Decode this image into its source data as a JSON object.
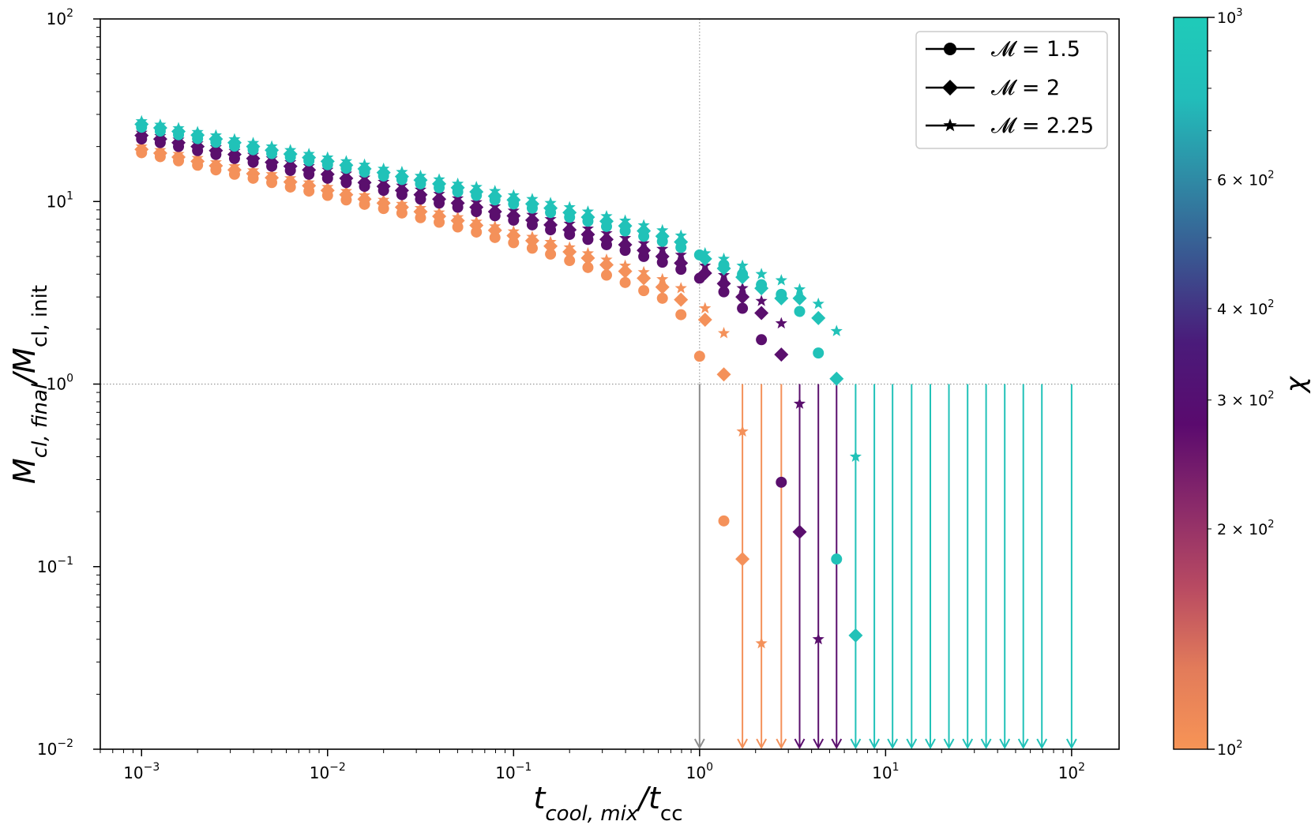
{
  "chart_data": {
    "type": "scatter",
    "xscale": "log",
    "yscale": "log",
    "xlim": [
      0.0006,
      180
    ],
    "ylim": [
      0.01,
      100
    ],
    "x_ticks": [
      0.001,
      0.01,
      0.1,
      1,
      10,
      100
    ],
    "x_tick_labels": [
      {
        "base": "10",
        "exp": "−3"
      },
      {
        "base": "10",
        "exp": "−2"
      },
      {
        "base": "10",
        "exp": "−1"
      },
      {
        "base": "10",
        "exp": "0"
      },
      {
        "base": "10",
        "exp": "1"
      },
      {
        "base": "10",
        "exp": "2"
      }
    ],
    "y_ticks": [
      0.01,
      0.1,
      1,
      10,
      100
    ],
    "y_tick_labels": [
      {
        "base": "10",
        "exp": "−2"
      },
      {
        "base": "10",
        "exp": "−1"
      },
      {
        "base": "10",
        "exp": "0"
      },
      {
        "base": "10",
        "exp": "1"
      },
      {
        "base": "10",
        "exp": "2"
      }
    ],
    "xlabel": {
      "main": "t",
      "sub": "cool, mix",
      "mid": "/t",
      "sub2": "cc"
    },
    "ylabel": {
      "main": "M",
      "sub": "cl, final",
      "mid": "/M",
      "sub2": "cl, init"
    },
    "reference_lines": {
      "x": 1,
      "y": 1
    },
    "legend": {
      "placement": "top-right",
      "entries": [
        {
          "marker": "circle",
          "label": "𝓜 = 1.5"
        },
        {
          "marker": "diamond",
          "label": "𝓜 = 2"
        },
        {
          "marker": "star",
          "label": "𝓜 = 2.25"
        }
      ]
    },
    "colorbar": {
      "label": "χ",
      "scale": "log",
      "range": [
        100,
        1000
      ],
      "gradient": [
        "#f79456",
        "#e27b5a",
        "#b84a62",
        "#8a2a6a",
        "#5a0a6e",
        "#4a1b7a",
        "#3a5490",
        "#2f8aa5",
        "#22bdba",
        "#1fcbb9"
      ],
      "tick_values": [
        100,
        200,
        300,
        400,
        600,
        1000
      ],
      "tick_labels": [
        {
          "coef": "",
          "exp": "2"
        },
        {
          "coef": "2 × ",
          "exp": "2"
        },
        {
          "coef": "3 × ",
          "exp": "2"
        },
        {
          "coef": "4 × ",
          "exp": "2"
        },
        {
          "coef": "6 × ",
          "exp": "2"
        },
        {
          "coef": "",
          "exp": "3"
        }
      ]
    },
    "series_colors": {
      "chi_100": "#f4915a",
      "chi_300": "#5a0f6d",
      "chi_1000": "#21c2b8",
      "gray": "#8c8c8c"
    },
    "series": [
      {
        "chi": 100,
        "marker": "circle",
        "color_key": "chi_100",
        "x": [
          0.001,
          0.00126,
          0.00158,
          0.002,
          0.00251,
          0.00316,
          0.00398,
          0.00501,
          0.00631,
          0.00794,
          0.01,
          0.0126,
          0.0158,
          0.02,
          0.0251,
          0.0316,
          0.0398,
          0.0501,
          0.0631,
          0.0794,
          0.1,
          0.126,
          0.158,
          0.2,
          0.251,
          0.316,
          0.398,
          0.501,
          0.631,
          0.794,
          1.0,
          1.35
        ],
        "y": [
          18.5,
          17.6,
          16.7,
          15.8,
          14.9,
          14.1,
          13.4,
          12.7,
          12.0,
          11.4,
          10.8,
          10.2,
          9.65,
          9.15,
          8.65,
          8.15,
          7.7,
          7.25,
          6.8,
          6.35,
          5.95,
          5.55,
          5.15,
          4.75,
          4.35,
          3.95,
          3.6,
          3.25,
          2.95,
          2.4,
          1.42,
          0.178
        ]
      },
      {
        "chi": 100,
        "marker": "diamond",
        "color_key": "chi_100",
        "x": [
          0.001,
          0.00126,
          0.00158,
          0.002,
          0.00251,
          0.00316,
          0.00398,
          0.00501,
          0.00631,
          0.00794,
          0.01,
          0.0126,
          0.0158,
          0.02,
          0.0251,
          0.0316,
          0.0398,
          0.0501,
          0.0631,
          0.0794,
          0.1,
          0.126,
          0.158,
          0.2,
          0.251,
          0.316,
          0.398,
          0.501,
          0.631,
          0.794,
          1.07,
          1.35,
          1.7
        ],
        "y": [
          19.3,
          18.4,
          17.5,
          16.6,
          15.7,
          14.9,
          14.2,
          13.5,
          12.8,
          12.2,
          11.5,
          10.9,
          10.3,
          9.8,
          9.3,
          8.8,
          8.3,
          7.85,
          7.4,
          6.95,
          6.5,
          6.1,
          5.7,
          5.3,
          4.9,
          4.5,
          4.15,
          3.8,
          3.4,
          2.9,
          2.25,
          1.13,
          0.11
        ]
      },
      {
        "chi": 100,
        "marker": "star",
        "color_key": "chi_100",
        "x": [
          0.001,
          0.00126,
          0.00158,
          0.002,
          0.00251,
          0.00316,
          0.00398,
          0.00501,
          0.00631,
          0.00794,
          0.01,
          0.0126,
          0.0158,
          0.02,
          0.0251,
          0.0316,
          0.0398,
          0.0501,
          0.0631,
          0.0794,
          0.1,
          0.126,
          0.158,
          0.2,
          0.251,
          0.316,
          0.398,
          0.501,
          0.631,
          0.794,
          1.07,
          1.35,
          1.7,
          2.15
        ],
        "y": [
          20.0,
          19.1,
          18.2,
          17.3,
          16.4,
          15.6,
          14.8,
          14.1,
          13.4,
          12.7,
          12.0,
          11.4,
          10.8,
          10.2,
          9.7,
          9.2,
          8.7,
          8.2,
          7.75,
          7.3,
          6.85,
          6.4,
          6.0,
          5.6,
          5.2,
          4.8,
          4.45,
          4.1,
          3.75,
          3.35,
          2.6,
          1.9,
          0.55,
          0.038
        ]
      },
      {
        "chi": 300,
        "marker": "circle",
        "color_key": "chi_300",
        "x": [
          0.001,
          0.00126,
          0.00158,
          0.002,
          0.00251,
          0.00316,
          0.00398,
          0.00501,
          0.00631,
          0.00794,
          0.01,
          0.0126,
          0.0158,
          0.02,
          0.0251,
          0.0316,
          0.0398,
          0.0501,
          0.0631,
          0.0794,
          0.1,
          0.126,
          0.158,
          0.2,
          0.251,
          0.316,
          0.398,
          0.501,
          0.631,
          0.794,
          1.0,
          1.35,
          1.7,
          2.15,
          2.75
        ],
        "y": [
          22.0,
          21.0,
          20.0,
          19.0,
          18.1,
          17.2,
          16.4,
          15.6,
          14.8,
          14.1,
          13.4,
          12.7,
          12.1,
          11.5,
          10.9,
          10.3,
          9.8,
          9.3,
          8.8,
          8.35,
          7.9,
          7.45,
          7.0,
          6.6,
          6.2,
          5.8,
          5.4,
          5.0,
          4.65,
          4.25,
          3.8,
          3.2,
          2.6,
          1.75,
          0.29
        ]
      },
      {
        "chi": 300,
        "marker": "diamond",
        "color_key": "chi_300",
        "x": [
          0.001,
          0.00126,
          0.00158,
          0.002,
          0.00251,
          0.00316,
          0.00398,
          0.00501,
          0.00631,
          0.00794,
          0.01,
          0.0126,
          0.0158,
          0.02,
          0.0251,
          0.0316,
          0.0398,
          0.0501,
          0.0631,
          0.0794,
          0.1,
          0.126,
          0.158,
          0.2,
          0.251,
          0.316,
          0.398,
          0.501,
          0.631,
          0.794,
          1.07,
          1.35,
          1.7,
          2.15,
          2.75,
          3.45
        ],
        "y": [
          23.0,
          22.0,
          21.0,
          20.0,
          19.0,
          18.1,
          17.2,
          16.4,
          15.6,
          14.9,
          14.1,
          13.4,
          12.7,
          12.1,
          11.5,
          10.9,
          10.3,
          9.8,
          9.3,
          8.8,
          8.35,
          7.9,
          7.45,
          7.0,
          6.6,
          6.2,
          5.8,
          5.4,
          5.0,
          4.6,
          4.05,
          3.55,
          3.0,
          2.45,
          1.45,
          0.155
        ]
      },
      {
        "chi": 300,
        "marker": "star",
        "color_key": "chi_300",
        "x": [
          0.001,
          0.00126,
          0.00158,
          0.002,
          0.00251,
          0.00316,
          0.00398,
          0.00501,
          0.00631,
          0.00794,
          0.01,
          0.0126,
          0.0158,
          0.02,
          0.0251,
          0.0316,
          0.0398,
          0.0501,
          0.0631,
          0.0794,
          0.1,
          0.126,
          0.158,
          0.2,
          0.251,
          0.316,
          0.398,
          0.501,
          0.631,
          0.794,
          1.07,
          1.35,
          1.7,
          2.15,
          2.75,
          3.45,
          4.35
        ],
        "y": [
          23.8,
          22.8,
          21.8,
          20.8,
          19.8,
          18.9,
          18.0,
          17.2,
          16.4,
          15.6,
          14.9,
          14.2,
          13.5,
          12.8,
          12.2,
          11.6,
          11.0,
          10.4,
          9.9,
          9.4,
          8.9,
          8.45,
          8.0,
          7.55,
          7.1,
          6.7,
          6.3,
          5.9,
          5.5,
          5.1,
          4.45,
          3.95,
          3.35,
          2.85,
          2.15,
          0.78,
          0.04
        ]
      },
      {
        "chi": 1000,
        "marker": "circle",
        "color_key": "chi_1000",
        "x": [
          0.001,
          0.00126,
          0.00158,
          0.002,
          0.00251,
          0.00316,
          0.00398,
          0.00501,
          0.00631,
          0.00794,
          0.01,
          0.0126,
          0.0158,
          0.02,
          0.0251,
          0.0316,
          0.0398,
          0.0501,
          0.0631,
          0.0794,
          0.1,
          0.126,
          0.158,
          0.2,
          0.251,
          0.316,
          0.398,
          0.501,
          0.631,
          0.794,
          1.0,
          1.35,
          1.7,
          2.15,
          2.75,
          3.45,
          4.35,
          5.45
        ],
        "y": [
          25.5,
          24.3,
          23.2,
          22.1,
          21.1,
          20.1,
          19.2,
          18.3,
          17.5,
          16.7,
          15.9,
          15.2,
          14.5,
          13.8,
          13.2,
          12.5,
          11.9,
          11.3,
          10.8,
          10.2,
          9.7,
          9.2,
          8.7,
          8.2,
          7.8,
          7.3,
          6.9,
          6.45,
          6.05,
          5.6,
          5.1,
          4.5,
          4.0,
          3.5,
          3.1,
          2.5,
          1.48,
          0.11
        ]
      },
      {
        "chi": 1000,
        "marker": "diamond",
        "color_key": "chi_1000",
        "x": [
          0.001,
          0.00126,
          0.00158,
          0.002,
          0.00251,
          0.00316,
          0.00398,
          0.00501,
          0.00631,
          0.00794,
          0.01,
          0.0126,
          0.0158,
          0.02,
          0.0251,
          0.0316,
          0.0398,
          0.0501,
          0.0631,
          0.0794,
          0.1,
          0.126,
          0.158,
          0.2,
          0.251,
          0.316,
          0.398,
          0.501,
          0.631,
          0.794,
          1.07,
          1.35,
          1.7,
          2.15,
          2.75,
          3.45,
          4.35,
          5.45,
          6.9
        ],
        "y": [
          26.5,
          25.3,
          24.2,
          23.1,
          22.0,
          21.0,
          20.0,
          19.1,
          18.2,
          17.4,
          16.6,
          15.8,
          15.1,
          14.4,
          13.7,
          13.1,
          12.5,
          11.9,
          11.3,
          10.7,
          10.2,
          9.7,
          9.2,
          8.7,
          8.2,
          7.8,
          7.35,
          6.9,
          6.45,
          6.0,
          4.85,
          4.3,
          3.85,
          3.35,
          2.95,
          2.95,
          2.3,
          1.07,
          0.042
        ]
      },
      {
        "chi": 1000,
        "marker": "star",
        "color_key": "chi_1000",
        "x": [
          0.001,
          0.00126,
          0.00158,
          0.002,
          0.00251,
          0.00316,
          0.00398,
          0.00501,
          0.00631,
          0.00794,
          0.01,
          0.0126,
          0.0158,
          0.02,
          0.0251,
          0.0316,
          0.0398,
          0.0501,
          0.0631,
          0.0794,
          0.1,
          0.126,
          0.158,
          0.2,
          0.251,
          0.316,
          0.398,
          0.501,
          0.631,
          0.794,
          1.07,
          1.35,
          1.7,
          2.15,
          2.75,
          3.45,
          4.35,
          5.45,
          6.9
        ],
        "y": [
          27.5,
          26.3,
          25.2,
          24.0,
          23.0,
          21.9,
          20.9,
          20.0,
          19.1,
          18.2,
          17.4,
          16.6,
          15.9,
          15.1,
          14.5,
          13.8,
          13.2,
          12.5,
          12.0,
          11.4,
          10.8,
          10.3,
          9.8,
          9.3,
          8.8,
          8.3,
          7.85,
          7.4,
          6.95,
          6.5,
          5.2,
          4.85,
          4.45,
          4.0,
          3.7,
          3.3,
          2.75,
          1.95,
          0.4
        ]
      }
    ],
    "upper_limits": [
      {
        "x": 1.0,
        "color_key": "gray"
      },
      {
        "x": 1.7,
        "color_key": "chi_100"
      },
      {
        "x": 2.15,
        "color_key": "chi_100"
      },
      {
        "x": 2.75,
        "color_key": "chi_100"
      },
      {
        "x": 3.45,
        "color_key": "chi_300"
      },
      {
        "x": 4.35,
        "color_key": "chi_300"
      },
      {
        "x": 5.45,
        "color_key": "chi_300"
      },
      {
        "x": 6.9,
        "color_key": "chi_1000"
      },
      {
        "x": 8.7,
        "color_key": "chi_1000"
      },
      {
        "x": 10.9,
        "color_key": "chi_1000"
      },
      {
        "x": 13.8,
        "color_key": "chi_1000"
      },
      {
        "x": 17.4,
        "color_key": "chi_1000"
      },
      {
        "x": 21.9,
        "color_key": "chi_1000"
      },
      {
        "x": 27.6,
        "color_key": "chi_1000"
      },
      {
        "x": 34.7,
        "color_key": "chi_1000"
      },
      {
        "x": 43.7,
        "color_key": "chi_1000"
      },
      {
        "x": 55.0,
        "color_key": "chi_1000"
      },
      {
        "x": 69.2,
        "color_key": "chi_1000"
      },
      {
        "x": 100.0,
        "color_key": "chi_1000"
      }
    ]
  }
}
